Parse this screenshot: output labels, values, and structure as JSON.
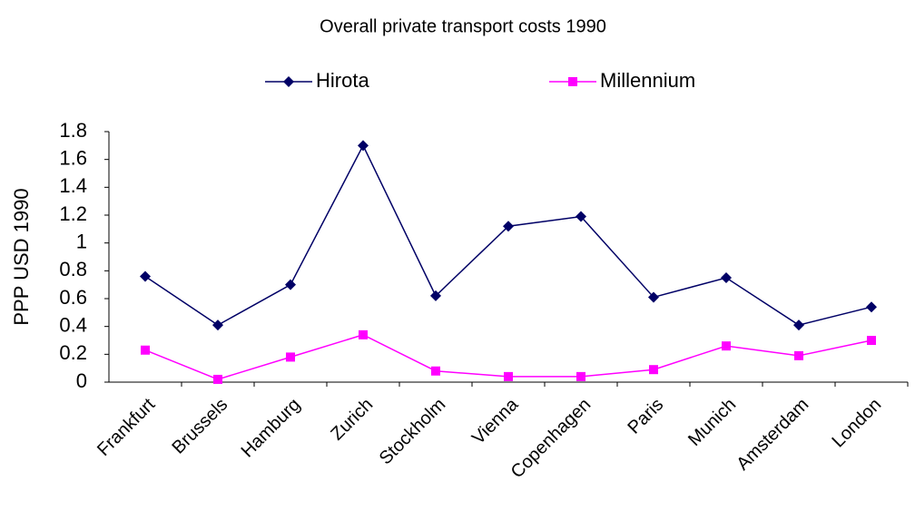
{
  "chart_data": {
    "type": "line",
    "title": "Overall private transport costs 1990",
    "y_label": "PPP USD 1990",
    "categories": [
      "Frankfurt",
      "Brussels",
      "Hamburg",
      "Zurich",
      "Stockholm",
      "Vienna",
      "Copenhagen",
      "Paris",
      "Munich",
      "Amsterdam",
      "London"
    ],
    "series": [
      {
        "name": "Hirota",
        "color": "#000066",
        "marker": "diamond",
        "values": [
          0.76,
          0.41,
          0.7,
          1.7,
          0.62,
          1.12,
          1.19,
          0.61,
          0.75,
          0.41,
          0.54
        ]
      },
      {
        "name": "Millennium",
        "color": "#ff00ff",
        "marker": "square",
        "values": [
          0.23,
          0.02,
          0.18,
          0.34,
          0.08,
          0.04,
          0.04,
          0.09,
          0.26,
          0.19,
          0.3
        ]
      }
    ],
    "ylim": [
      0,
      1.8
    ],
    "yticks": [
      0,
      0.2,
      0.4,
      0.6,
      0.8,
      1,
      1.2,
      1.4,
      1.6,
      1.8
    ],
    "grid": false,
    "legend": "top"
  }
}
